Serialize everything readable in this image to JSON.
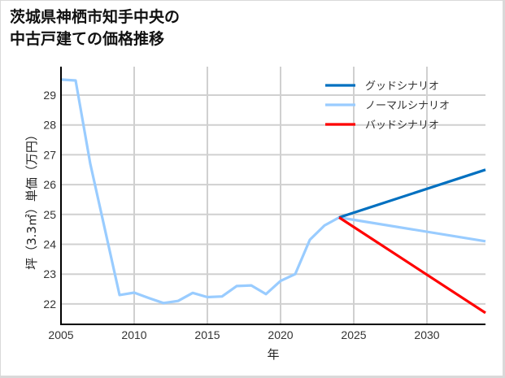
{
  "title_line1": "茨城県神栖市知手中央の",
  "title_line2": "中古戸建ての価格推移",
  "chart_data": {
    "type": "line",
    "title": "茨城県神栖市知手中央の中古戸建ての価格推移",
    "xlabel": "年",
    "ylabel": "坪（3.3㎡）単価（万円）",
    "xlim": [
      2005,
      2034
    ],
    "ylim": [
      21.3,
      29.9
    ],
    "x_ticks": [
      "2005",
      "2010",
      "2015",
      "2020",
      "2025",
      "2030"
    ],
    "y_ticks": [
      "22",
      "23",
      "24",
      "25",
      "26",
      "27",
      "28",
      "29"
    ],
    "grid": true,
    "legend_position": "upper right",
    "series": [
      {
        "name": "ノーマルシナリオ",
        "color": "#99ccff",
        "x": [
          2005,
          2006,
          2007,
          2008,
          2009,
          2010,
          2011,
          2012,
          2013,
          2014,
          2015,
          2016,
          2017,
          2018,
          2019,
          2020,
          2021,
          2022,
          2023,
          2024,
          2034
        ],
        "values": [
          29.52,
          29.49,
          26.7,
          24.5,
          22.3,
          22.38,
          22.2,
          22.03,
          22.1,
          22.37,
          22.23,
          22.25,
          22.6,
          22.62,
          22.33,
          22.77,
          23.0,
          24.15,
          24.63,
          24.9,
          24.1
        ]
      },
      {
        "name": "グッドシナリオ",
        "color": "#0070c0",
        "x": [
          2024,
          2034
        ],
        "values": [
          24.9,
          26.5
        ]
      },
      {
        "name": "バッドシナリオ",
        "color": "#ff0000",
        "x": [
          2024,
          2034
        ],
        "values": [
          24.9,
          21.7
        ]
      }
    ]
  },
  "legend": [
    {
      "label": "グッドシナリオ",
      "color": "#0070c0"
    },
    {
      "label": "ノーマルシナリオ",
      "color": "#99ccff"
    },
    {
      "label": "バッドシナリオ",
      "color": "#ff0000"
    }
  ]
}
